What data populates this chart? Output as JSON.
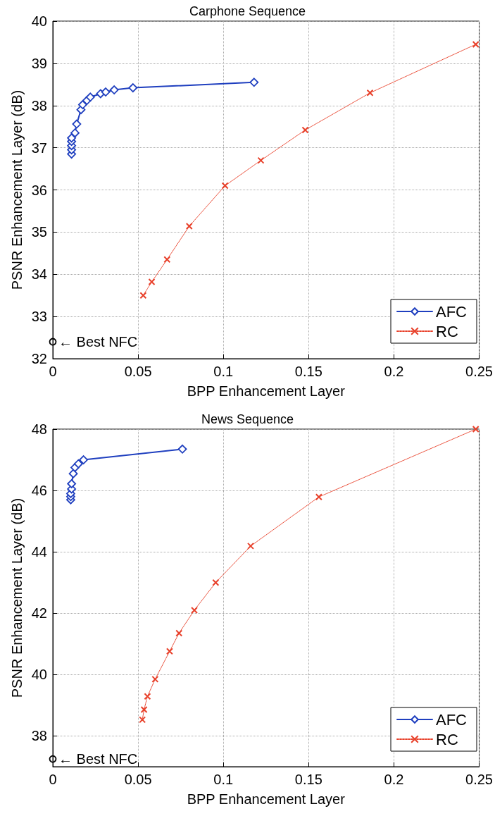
{
  "chart_data": [
    {
      "type": "line",
      "title": "Carphone Sequence",
      "xlabel": "BPP Enhancement Layer",
      "ylabel": "PSNR Enhancement Layer (dB)",
      "xlim": [
        0,
        0.25
      ],
      "xticks": [
        0,
        0.05,
        0.1,
        0.15,
        0.2,
        0.25
      ],
      "ylim": [
        32,
        40
      ],
      "yticks": [
        32,
        33,
        34,
        35,
        36,
        37,
        38,
        39,
        40
      ],
      "grid": true,
      "legend": "bottom right",
      "series": [
        {
          "name": "AFC",
          "color": "#1f3fbf",
          "marker": "diamond",
          "line_style": "solid",
          "x": [
            0.011,
            0.011,
            0.011,
            0.011,
            0.011,
            0.013,
            0.014,
            0.0165,
            0.0175,
            0.02,
            0.022,
            0.028,
            0.031,
            0.036,
            0.047,
            0.118
          ],
          "values": [
            36.85,
            36.95,
            37.05,
            37.15,
            37.23,
            37.35,
            37.56,
            37.9,
            38.02,
            38.12,
            38.2,
            38.28,
            38.32,
            38.37,
            38.42,
            38.55
          ]
        },
        {
          "name": "RC",
          "color": "#e8402a",
          "marker": "cross",
          "line_style": "dotted",
          "x": [
            0.053,
            0.058,
            0.067,
            0.08,
            0.101,
            0.122,
            0.148,
            0.186,
            0.248
          ],
          "values": [
            33.5,
            33.82,
            34.35,
            35.14,
            36.1,
            36.7,
            37.42,
            38.3,
            39.45
          ]
        },
        {
          "type": "scatter",
          "color": "#000000",
          "marker": "circle",
          "x": [
            0
          ],
          "values": [
            32.4
          ]
        }
      ],
      "annotations": [
        {
          "text": "← Best NFC",
          "x": 0,
          "y": 32.4
        }
      ]
    },
    {
      "type": "line",
      "title": "News Sequence",
      "xlabel": "BPP Enhancement Layer",
      "ylabel": "PSNR Enhancement Layer (dB)",
      "xlim": [
        0,
        0.25
      ],
      "xticks": [
        0,
        0.05,
        0.1,
        0.15,
        0.2,
        0.25
      ],
      "ylim": [
        37,
        48
      ],
      "yticks": [
        38,
        40,
        42,
        44,
        46,
        48
      ],
      "grid": true,
      "legend": "bottom right",
      "series": [
        {
          "name": "AFC",
          "color": "#1f3fbf",
          "marker": "diamond",
          "line_style": "solid",
          "x": [
            0.0105,
            0.0105,
            0.0105,
            0.011,
            0.011,
            0.012,
            0.013,
            0.015,
            0.018,
            0.076
          ],
          "values": [
            45.7,
            45.8,
            45.9,
            46.05,
            46.22,
            46.55,
            46.75,
            46.87,
            47.0,
            47.35
          ]
        },
        {
          "name": "RC",
          "color": "#e8402a",
          "marker": "cross",
          "line_style": "dotted",
          "x": [
            0.0525,
            0.0535,
            0.0555,
            0.06,
            0.0685,
            0.074,
            0.083,
            0.0955,
            0.116,
            0.156,
            0.248
          ],
          "values": [
            38.53,
            38.86,
            39.29,
            39.85,
            40.76,
            41.35,
            42.1,
            43.0,
            44.19,
            45.79,
            48.0
          ]
        },
        {
          "type": "scatter",
          "color": "#000000",
          "marker": "circle",
          "x": [
            0
          ],
          "values": [
            37.25
          ]
        }
      ],
      "annotations": [
        {
          "text": "← Best NFC",
          "x": 0,
          "y": 37.25
        }
      ]
    }
  ]
}
